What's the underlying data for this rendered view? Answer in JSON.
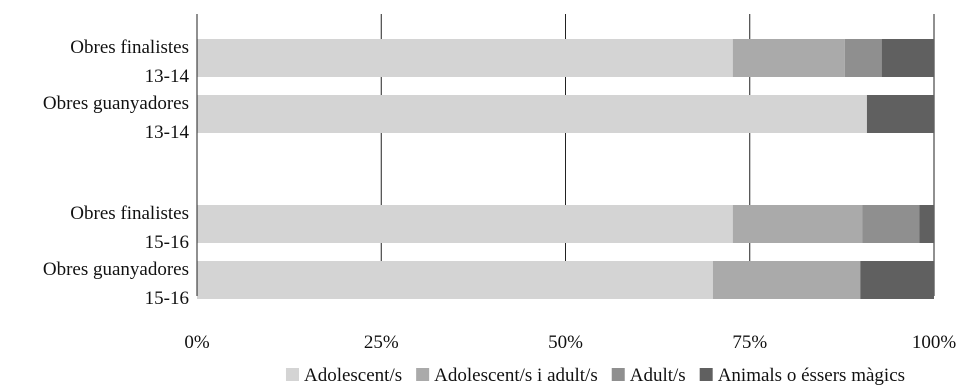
{
  "chart_data": {
    "type": "bar",
    "orientation": "horizontal",
    "stacked": true,
    "percent": true,
    "title": "",
    "xlabel": "",
    "ylabel": "",
    "xlim": [
      0,
      100
    ],
    "x_ticks": [
      "0%",
      "25%",
      "50%",
      "75%",
      "100%"
    ],
    "grid": "vertical",
    "legend_position": "bottom",
    "categories": [
      [
        "Obres finalistes",
        "13-14"
      ],
      [
        "Obres guanyadores",
        "13-14"
      ],
      [
        "Obres finalistes",
        "15-16"
      ],
      [
        "Obres guanyadores",
        "15-16"
      ]
    ],
    "series": [
      {
        "name": "Adolescent/s",
        "color": "#d4d4d4",
        "values": [
          72.7,
          90.9,
          72.7,
          70.0
        ]
      },
      {
        "name": "Adolescent/s i adult/s",
        "color": "#aaaaaa",
        "values": [
          15.2,
          0,
          17.6,
          20.0
        ]
      },
      {
        "name": "Adult/s",
        "color": "#8f8f8f",
        "values": [
          5.0,
          0,
          7.7,
          0
        ]
      },
      {
        "name": "Animals o éssers màgics",
        "color": "#606060",
        "values": [
          7.1,
          9.1,
          2.0,
          10.0
        ]
      }
    ]
  }
}
